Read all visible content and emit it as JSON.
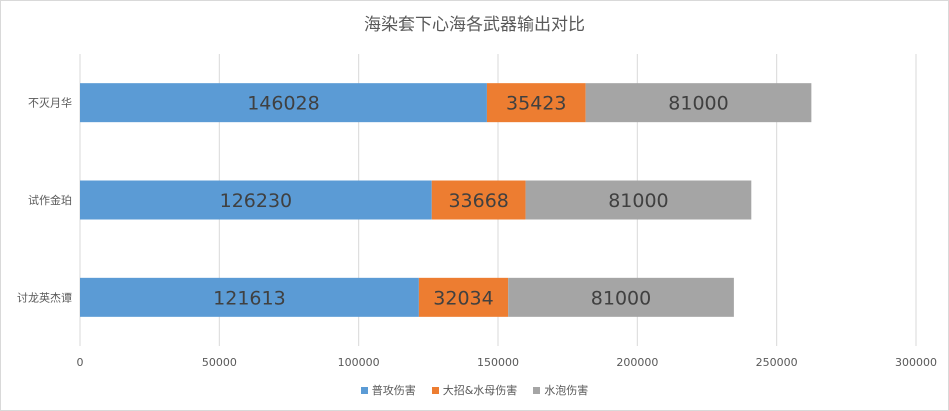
{
  "chart_data": {
    "type": "bar",
    "orientation": "horizontal",
    "stacked": true,
    "title": "海染套下心海各武器输出对比",
    "categories": [
      "不灭月华",
      "试作金珀",
      "讨龙英杰谭"
    ],
    "series": [
      {
        "name": "普攻伤害",
        "color": "#5b9bd5",
        "values": [
          146028,
          126230,
          121613
        ]
      },
      {
        "name": "大招&水母伤害",
        "color": "#ed7d31",
        "values": [
          35423,
          33668,
          32034
        ]
      },
      {
        "name": "水泡伤害",
        "color": "#a5a5a5",
        "values": [
          81000,
          81000,
          81000
        ]
      }
    ],
    "xlim": [
      0,
      300000
    ],
    "xticks": [
      "0",
      "50000",
      "100000",
      "150000",
      "200000",
      "250000",
      "300000"
    ],
    "grid": "vertical",
    "legend": "bottom"
  }
}
